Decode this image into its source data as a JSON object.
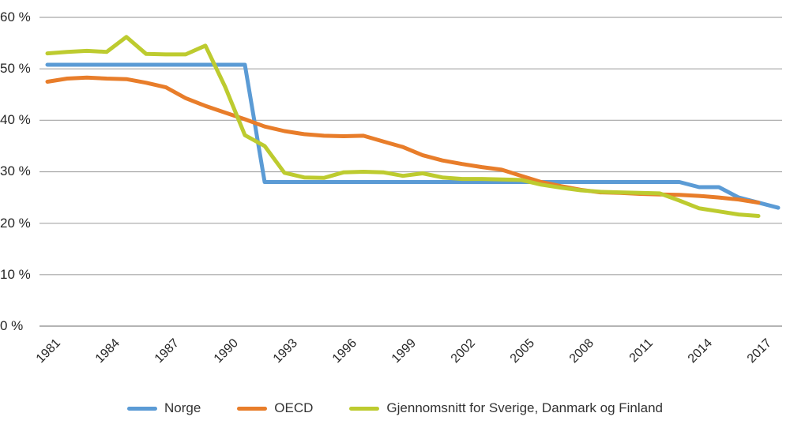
{
  "chart_data": {
    "type": "line",
    "title": "",
    "xlabel": "",
    "ylabel": "",
    "grid": true,
    "legend_position": "bottom",
    "ylim": [
      0,
      60
    ],
    "yticks": [
      {
        "value": 0,
        "label": "0 %"
      },
      {
        "value": 10,
        "label": "10 %"
      },
      {
        "value": 20,
        "label": "20 %"
      },
      {
        "value": 30,
        "label": "30 %"
      },
      {
        "value": 40,
        "label": "40 %"
      },
      {
        "value": 50,
        "label": "50 %"
      },
      {
        "value": 60,
        "label": "60 %"
      }
    ],
    "xticks": [
      1981,
      1984,
      1987,
      1990,
      1993,
      1996,
      1999,
      2002,
      2005,
      2008,
      2011,
      2014,
      2017
    ],
    "x": [
      1981,
      1982,
      1983,
      1984,
      1985,
      1986,
      1987,
      1988,
      1989,
      1990,
      1991,
      1992,
      1993,
      1994,
      1995,
      1996,
      1997,
      1998,
      1999,
      2000,
      2001,
      2002,
      2003,
      2004,
      2005,
      2006,
      2007,
      2008,
      2009,
      2010,
      2011,
      2012,
      2013,
      2014,
      2015,
      2016,
      2017,
      2018
    ],
    "series": [
      {
        "name": "Norge",
        "color": "#5B9BD5",
        "values": [
          50.8,
          50.8,
          50.8,
          50.8,
          50.8,
          50.8,
          50.8,
          50.8,
          50.8,
          50.8,
          50.8,
          28,
          28,
          28,
          28,
          28,
          28,
          28,
          28,
          28,
          28,
          28,
          28,
          28,
          28,
          28,
          28,
          28,
          28,
          28,
          28,
          28,
          28,
          27,
          27,
          25,
          24,
          23
        ]
      },
      {
        "name": "OECD",
        "color": "#E87D2A",
        "values": [
          47.5,
          48.1,
          48.3,
          48.1,
          48.0,
          47.3,
          46.4,
          44.3,
          42.8,
          41.5,
          40.2,
          38.8,
          37.9,
          37.3,
          37.0,
          36.9,
          37.0,
          35.9,
          34.8,
          33.2,
          32.2,
          31.5,
          30.9,
          30.4,
          29.2,
          28.0,
          27.2,
          26.5,
          26.0,
          25.9,
          25.7,
          25.6,
          25.5,
          25.3,
          25.0,
          24.6,
          24.0,
          null
        ]
      },
      {
        "name": "Gjennomsnitt for Sverige, Danmark og Finland",
        "color": "#BDCB2F",
        "values": [
          53.0,
          53.3,
          53.5,
          53.3,
          56.2,
          52.9,
          52.8,
          52.8,
          54.5,
          46.5,
          37.1,
          35.0,
          29.8,
          28.9,
          28.8,
          29.9,
          30.0,
          29.9,
          29.2,
          29.7,
          28.9,
          28.6,
          28.6,
          28.5,
          28.4,
          27.5,
          26.9,
          26.4,
          26.1,
          26.0,
          25.9,
          25.8,
          24.4,
          22.9,
          22.3,
          21.7,
          21.4,
          null
        ]
      }
    ],
    "grid_color": "#A6A6A6",
    "axis_color": "#9C9C9C"
  }
}
